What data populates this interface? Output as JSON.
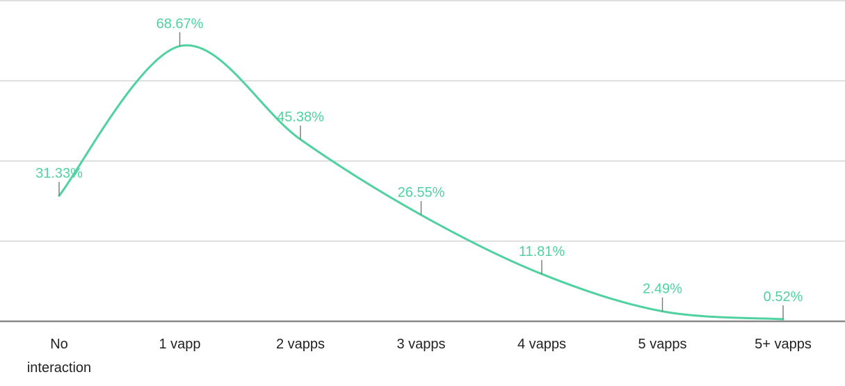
{
  "chart_data": {
    "type": "line",
    "categories": [
      "No interaction",
      "1 vapp",
      "2 vapps",
      "3 vapps",
      "4 vapps",
      "5 vapps",
      "5+ vapps"
    ],
    "category_lines": [
      [
        "No",
        "interaction"
      ],
      [
        "1 vapp"
      ],
      [
        "2 vapps"
      ],
      [
        "3 vapps"
      ],
      [
        "4 vapps"
      ],
      [
        "5 vapps"
      ],
      [
        "5+ vapps"
      ]
    ],
    "series": [
      {
        "values": [
          31.33,
          68.67,
          45.38,
          26.55,
          11.81,
          2.49,
          0.52
        ],
        "labels": [
          "31.33%",
          "68.67%",
          "45.38%",
          "26.55%",
          "11.81%",
          "2.49%",
          "0.52%"
        ],
        "color": "#4fd1a0"
      }
    ],
    "ylim": [
      0,
      80
    ],
    "grid": true,
    "smooth": true,
    "title": "",
    "xlabel": "",
    "ylabel": ""
  }
}
